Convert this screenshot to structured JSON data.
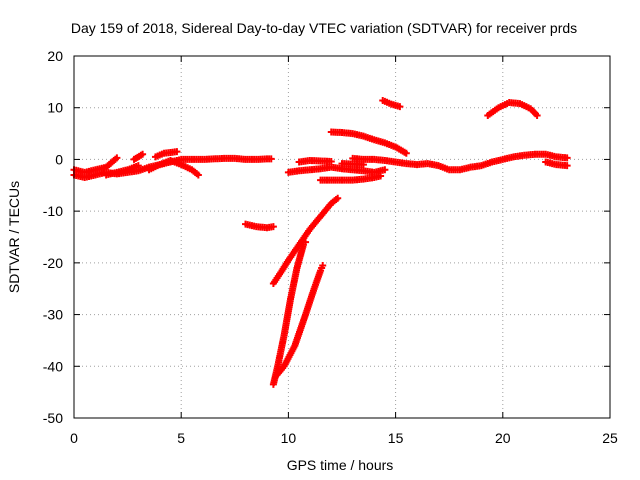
{
  "chart_data": {
    "type": "scatter",
    "title": "Day 159 of 2018, Sidereal Day-to-day VTEC variation (SDTVAR) for receiver prds",
    "xlabel": "GPS time / hours",
    "ylabel": "SDTVAR / TECUs",
    "xlim": [
      0,
      25
    ],
    "ylim": [
      -50,
      20
    ],
    "xticks": [
      0,
      5,
      10,
      15,
      20,
      25
    ],
    "yticks": [
      -50,
      -40,
      -30,
      -20,
      -10,
      0,
      10,
      20
    ],
    "xtick_labels": [
      "0",
      "5",
      "10",
      "15",
      "20",
      "25"
    ],
    "ytick_labels": [
      "-50",
      "-40",
      "-30",
      "-20",
      "-10",
      "0",
      "10",
      "20"
    ],
    "grid": true,
    "marker_color": "#ff0000",
    "marker": "plus",
    "series": [
      {
        "points": [
          [
            0,
            -3
          ],
          [
            0.5,
            -3.5
          ],
          [
            1,
            -3
          ],
          [
            1.5,
            -2.5
          ],
          [
            2,
            -2.8
          ],
          [
            2.5,
            -2.5
          ],
          [
            3,
            -2.2
          ],
          [
            3.5,
            -1.5
          ],
          [
            4,
            -1
          ],
          [
            4.5,
            -0.5
          ],
          [
            5,
            0
          ],
          [
            5.5,
            0
          ],
          [
            6,
            0
          ],
          [
            6.5,
            0.1
          ],
          [
            7,
            0.2
          ],
          [
            7.5,
            0.2
          ],
          [
            8,
            0
          ],
          [
            8.5,
            0
          ],
          [
            9,
            0.1
          ],
          [
            9.2,
            0.1
          ]
        ]
      },
      {
        "points": [
          [
            0,
            -2
          ],
          [
            0.5,
            -2.5
          ],
          [
            1,
            -2
          ],
          [
            1.5,
            -1.5
          ],
          [
            2,
            0.3
          ]
        ]
      },
      {
        "points": [
          [
            1.5,
            -3
          ],
          [
            2,
            -2.5
          ],
          [
            2.5,
            -2
          ],
          [
            3,
            -1.2
          ]
        ]
      },
      {
        "points": [
          [
            2.8,
            0
          ],
          [
            3.2,
            1
          ]
        ]
      },
      {
        "points": [
          [
            3.5,
            -2
          ],
          [
            4,
            -1
          ],
          [
            4.5,
            -0.2
          ],
          [
            5,
            -1
          ],
          [
            5.5,
            -2
          ],
          [
            5.8,
            -3
          ]
        ]
      },
      {
        "points": [
          [
            3.8,
            0.5
          ],
          [
            4.2,
            1.2
          ],
          [
            4.8,
            1.5
          ]
        ]
      },
      {
        "points": [
          [
            8,
            -12.5
          ],
          [
            8.5,
            -13
          ],
          [
            9,
            -13.2
          ],
          [
            9.3,
            -13
          ]
        ]
      },
      {
        "points": [
          [
            10,
            -2.5
          ],
          [
            10.5,
            -2.2
          ],
          [
            11,
            -2
          ],
          [
            11.5,
            -1.8
          ],
          [
            12,
            -1.5
          ],
          [
            12.5,
            -1.8
          ],
          [
            13,
            -2
          ],
          [
            13.5,
            -2.2
          ],
          [
            14,
            -2.5
          ],
          [
            14.5,
            -2
          ]
        ]
      },
      {
        "points": [
          [
            10.5,
            -0.5
          ],
          [
            11,
            -0.2
          ],
          [
            11.5,
            -0.3
          ],
          [
            12,
            -0.4
          ]
        ]
      },
      {
        "points": [
          [
            11.5,
            -4
          ],
          [
            12,
            -4
          ],
          [
            12.5,
            -4
          ],
          [
            13,
            -4
          ],
          [
            13.5,
            -3.8
          ],
          [
            14,
            -3.5
          ],
          [
            14.3,
            -3.2
          ]
        ]
      },
      {
        "points": [
          [
            12.5,
            -0.8
          ],
          [
            13,
            -0.9
          ],
          [
            13.5,
            -1
          ]
        ]
      },
      {
        "points": [
          [
            13,
            0.2
          ],
          [
            13.5,
            0
          ],
          [
            14,
            0
          ],
          [
            14.5,
            -0.2
          ],
          [
            15,
            -0.5
          ],
          [
            15.5,
            -0.8
          ],
          [
            16,
            -1
          ],
          [
            16.5,
            -0.8
          ],
          [
            17,
            -1.2
          ],
          [
            17.5,
            -2
          ],
          [
            18,
            -2
          ],
          [
            18.5,
            -1.5
          ],
          [
            19,
            -1.2
          ],
          [
            19.5,
            -0.5
          ],
          [
            20,
            0
          ],
          [
            20.5,
            0.5
          ],
          [
            21,
            0.8
          ],
          [
            21.5,
            1
          ],
          [
            22,
            1
          ],
          [
            22.5,
            0.5
          ],
          [
            23,
            0.3
          ]
        ]
      },
      {
        "points": [
          [
            22,
            -0.5
          ],
          [
            22.5,
            -1
          ],
          [
            23,
            -1.2
          ]
        ]
      },
      {
        "points": [
          [
            12,
            5.3
          ],
          [
            12.5,
            5.2
          ],
          [
            13,
            5
          ],
          [
            13.5,
            4.5
          ],
          [
            14,
            3.8
          ],
          [
            14.5,
            3.2
          ],
          [
            15,
            2.4
          ],
          [
            15.5,
            1.2
          ]
        ]
      },
      {
        "points": [
          [
            14.4,
            11.4
          ],
          [
            14.8,
            10.7
          ],
          [
            15.2,
            10.2
          ]
        ]
      },
      {
        "points": [
          [
            19.3,
            8.5
          ],
          [
            19.8,
            10
          ],
          [
            20.3,
            11
          ],
          [
            20.8,
            10.8
          ],
          [
            21.3,
            9.8
          ],
          [
            21.6,
            8.5
          ]
        ]
      },
      {
        "points": [
          [
            9.3,
            -24
          ],
          [
            9.7,
            -21.5
          ],
          [
            10,
            -19.5
          ],
          [
            10.5,
            -16.5
          ],
          [
            11,
            -13.5
          ],
          [
            11.5,
            -11
          ],
          [
            12,
            -8.5
          ],
          [
            12.3,
            -7.5
          ]
        ]
      },
      {
        "points": [
          [
            9.3,
            -43.5
          ],
          [
            9.5,
            -40
          ],
          [
            9.8,
            -34
          ],
          [
            10.1,
            -27
          ],
          [
            10.4,
            -21
          ],
          [
            10.7,
            -16.5
          ],
          [
            10.8,
            -16
          ]
        ]
      },
      {
        "points": [
          [
            9.4,
            -42
          ],
          [
            9.8,
            -40
          ],
          [
            10.3,
            -36
          ],
          [
            10.8,
            -30
          ],
          [
            11.2,
            -25
          ],
          [
            11.5,
            -21.5
          ],
          [
            11.6,
            -20.5
          ]
        ]
      }
    ]
  }
}
